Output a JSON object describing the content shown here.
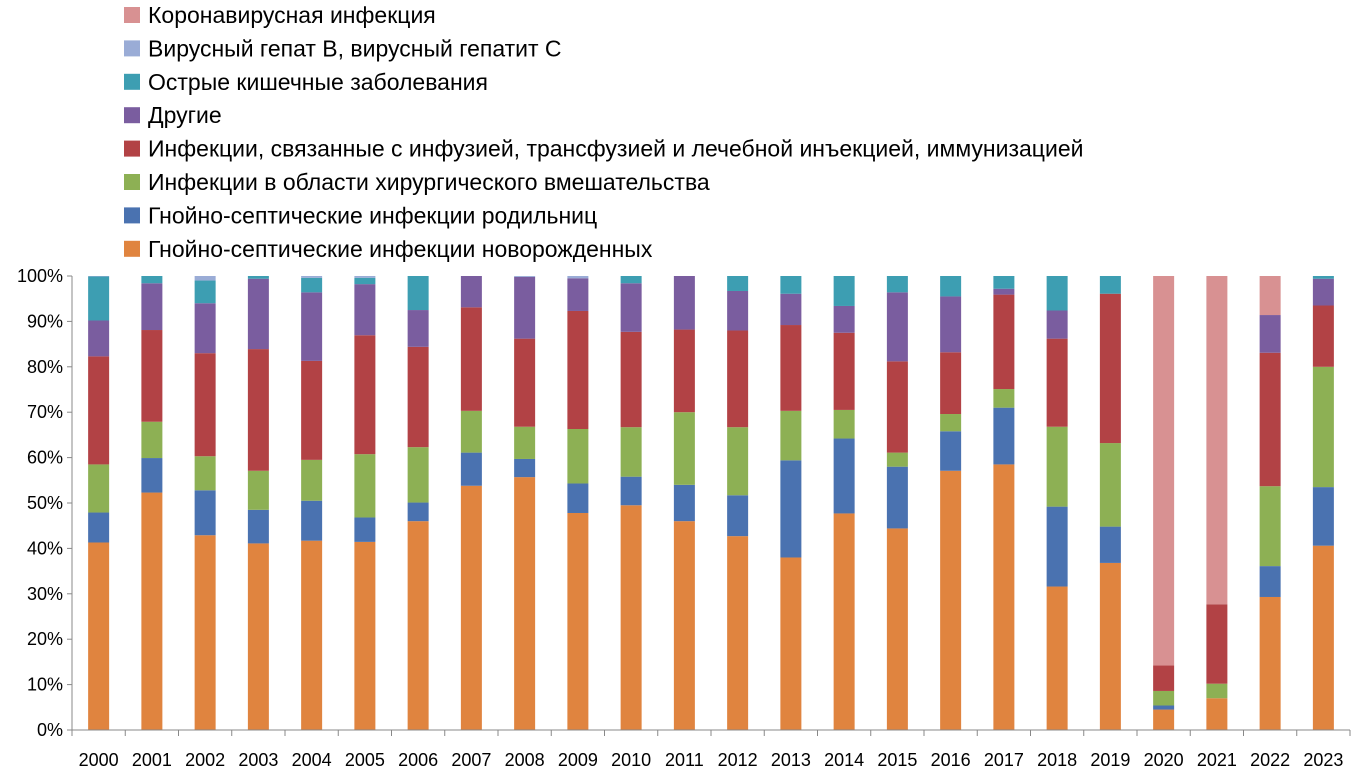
{
  "chart_data": {
    "type": "bar",
    "stacked": true,
    "normalized": true,
    "legend_position": "top-left",
    "grid": false,
    "title": "",
    "xlabel": "",
    "ylabel": "",
    "ylim": [
      0,
      100
    ],
    "y_ticks": [
      "0%",
      "10%",
      "20%",
      "30%",
      "40%",
      "50%",
      "60%",
      "70%",
      "80%",
      "90%",
      "100%"
    ],
    "categories": [
      "2000",
      "2001",
      "2002",
      "2003",
      "2004",
      "2005",
      "2006",
      "2007",
      "2008",
      "2009",
      "2010",
      "2011",
      "2012",
      "2013",
      "2014",
      "2015",
      "2016",
      "2017",
      "2018",
      "2019",
      "2020",
      "2021",
      "2022",
      "2023"
    ],
    "series": [
      {
        "name": "Гнойно-септические инфекции новорожденных",
        "color": "#E0843F",
        "values": [
          41.3,
          52.3,
          42.9,
          41.1,
          41.7,
          41.6,
          46.0,
          53.8,
          55.7,
          47.8,
          49.5,
          46.0,
          42.7,
          38.0,
          47.7,
          44.4,
          57.1,
          58.5,
          31.6,
          36.8,
          4.5,
          7.0,
          29.3,
          40.6
        ]
      },
      {
        "name": "Гнойно-септические инфекции родильниц",
        "color": "#4A72B0",
        "values": [
          6.6,
          7.6,
          9.9,
          7.4,
          8.8,
          5.4,
          4.1,
          7.3,
          4.0,
          6.5,
          6.3,
          8.0,
          9.0,
          21.4,
          16.5,
          13.6,
          8.7,
          12.5,
          17.6,
          8.0,
          0.9,
          0,
          6.8,
          12.9
        ]
      },
      {
        "name": "Инфекции в области хирургического вмешательства",
        "color": "#8DB054",
        "values": [
          10.6,
          8.0,
          7.5,
          8.6,
          9.0,
          14.0,
          12.2,
          9.2,
          7.1,
          12.0,
          10.9,
          16.0,
          15.0,
          10.9,
          6.3,
          3.1,
          3.8,
          4.1,
          17.6,
          18.4,
          3.2,
          3.2,
          17.6,
          26.5
        ]
      },
      {
        "name": "Инфекции, связанные с инфузией, трансфузией и лечебной инъекцией, иммунизацией",
        "color": "#B24245",
        "values": [
          23.8,
          20.2,
          22.7,
          26.8,
          21.8,
          26.3,
          22.1,
          22.8,
          19.4,
          26.0,
          21.0,
          18.2,
          21.3,
          18.9,
          17.0,
          20.1,
          13.6,
          20.8,
          19.4,
          32.9,
          5.6,
          17.5,
          29.4,
          13.5
        ]
      },
      {
        "name": "Другие",
        "color": "#7A5D9F",
        "values": [
          7.9,
          10.3,
          11.0,
          15.5,
          15.1,
          11.3,
          8.1,
          6.9,
          13.6,
          7.2,
          10.7,
          11.8,
          8.7,
          6.9,
          5.9,
          15.2,
          12.3,
          1.3,
          6.2,
          0,
          0,
          0,
          8.3,
          5.9
        ]
      },
      {
        "name": "Острые кишечные заболевания",
        "color": "#3D9EB2",
        "values": [
          9.7,
          1.6,
          5.0,
          0.6,
          3.2,
          1.4,
          7.5,
          0,
          0,
          0,
          1.6,
          0,
          3.3,
          3.9,
          6.6,
          3.6,
          4.5,
          2.8,
          7.6,
          3.9,
          0,
          0,
          0,
          0.6
        ]
      },
      {
        "name": "Вирусный гепат В, вирусный гепатит С",
        "color": "#9AACD6",
        "values": [
          0.1,
          0,
          1.0,
          0,
          0.4,
          0.4,
          0,
          0,
          0.2,
          0.5,
          0,
          0,
          0,
          0,
          0,
          0,
          0,
          0,
          0,
          0,
          0,
          0,
          0,
          0
        ]
      },
      {
        "name": "Коронавирусная инфекция",
        "color": "#D89192",
        "values": [
          0,
          0,
          0,
          0,
          0,
          0,
          0,
          0,
          0,
          0,
          0,
          0,
          0,
          0,
          0,
          0,
          0,
          0,
          0,
          0,
          85.8,
          72.3,
          8.6,
          0
        ]
      }
    ]
  }
}
